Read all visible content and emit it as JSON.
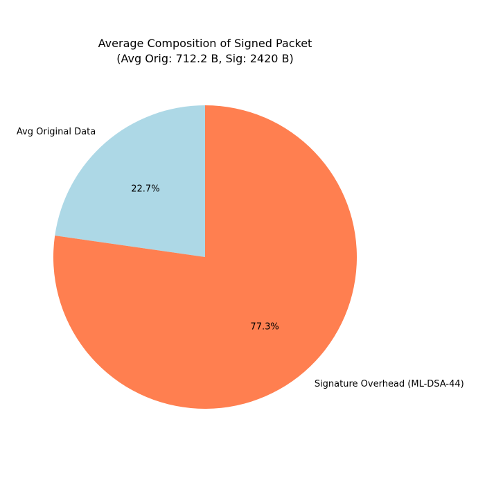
{
  "chart_data": {
    "type": "pie",
    "title": "Average Composition of Signed Packet",
    "subtitle": "(Avg Orig: 712.2 B, Sig: 2420 B)",
    "slices": [
      {
        "label": "Avg Original Data",
        "value": 712.2,
        "percent_label": "22.7%",
        "color": "#add8e6"
      },
      {
        "label": "Signature Overhead (ML-DSA-44)",
        "value": 2420,
        "percent_label": "77.3%",
        "color": "#ff7f50"
      }
    ],
    "start_angle": 90,
    "direction": "counterclockwise",
    "legend": "none"
  }
}
